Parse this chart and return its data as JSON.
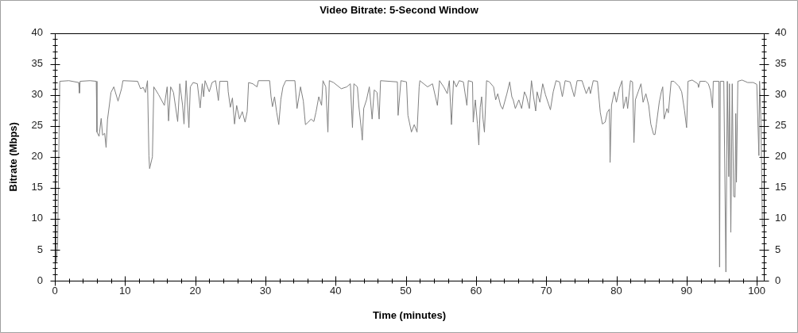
{
  "chart_data": {
    "type": "line",
    "title": "Video Bitrate: 5-Second Window",
    "xlabel": "Time (minutes)",
    "ylabel": "Bitrate (Mbps)",
    "color": "#808080",
    "marker": "none",
    "x": [
      0,
      0.1,
      0.2,
      0.4,
      0.5,
      0.7,
      2.0,
      3.4,
      3.5,
      3.6,
      5.0,
      5.9,
      6.0,
      6.3,
      6.6,
      6.8,
      7.1,
      7.3,
      7.5,
      8.0,
      8.4,
      9.0,
      9.5,
      9.7,
      11.8,
      12.2,
      12.6,
      12.9,
      13.2,
      13.4,
      13.5,
      13.9,
      14.1,
      14.8,
      15.6,
      16.0,
      16.2,
      16.5,
      16.9,
      17.5,
      17.8,
      18.2,
      18.4,
      18.7,
      19.1,
      19.3,
      19.7,
      20.3,
      20.7,
      21.0,
      21.2,
      21.4,
      22.0,
      22.4,
      22.9,
      23.3,
      23.5,
      24.6,
      24.7,
      25.0,
      25.3,
      25.6,
      25.9,
      26.3,
      26.7,
      27.1,
      27.4,
      27.6,
      28.2,
      28.8,
      29.0,
      30.6,
      30.8,
      31.0,
      31.3,
      31.6,
      31.9,
      32.2,
      32.5,
      32.9,
      34.2,
      34.5,
      35.0,
      35.4,
      35.7,
      36.1,
      36.5,
      36.9,
      37.2,
      37.6,
      38.0,
      38.2,
      38.6,
      38.9,
      39.1,
      39.7,
      40.8,
      41.6,
      42.1,
      42.4,
      42.6,
      43.1,
      43.3,
      43.7,
      43.8,
      44.0,
      44.4,
      44.8,
      45.2,
      45.5,
      45.9,
      46.2,
      46.4,
      48.8,
      48.9,
      49.3,
      50.1,
      50.3,
      50.8,
      51.2,
      51.6,
      51.9,
      52.0,
      53.1,
      53.8,
      54.5,
      54.8,
      55.4,
      55.9,
      56.2,
      56.5,
      56.8,
      57.2,
      57.6,
      58.2,
      58.7,
      58.9,
      59.5,
      59.6,
      59.9,
      60.2,
      60.4,
      60.6,
      60.8,
      61.0,
      61.2,
      61.5,
      61.9,
      62.5,
      62.8,
      63.1,
      63.5,
      63.8,
      64.4,
      64.8,
      65.1,
      65.3,
      65.6,
      66.1,
      66.5,
      66.9,
      67.2,
      67.6,
      67.9,
      68.2,
      68.5,
      68.7,
      69.1,
      69.5,
      69.9,
      70.6,
      71.0,
      71.4,
      71.9,
      72.3,
      72.7,
      73.4,
      74.0,
      74.4,
      75.1,
      75.7,
      76.1,
      76.3,
      76.7,
      77.3,
      77.7,
      78.0,
      78.4,
      78.7,
      79.0,
      79.1,
      79.3,
      79.7,
      80.0,
      80.4,
      80.8,
      81.0,
      81.4,
      81.6,
      82.0,
      82.3,
      82.5,
      82.7,
      83.1,
      83.5,
      83.8,
      84.2,
      84.6,
      84.9,
      85.3,
      85.5,
      85.7,
      86.1,
      86.4,
      86.6,
      86.8,
      87.2,
      87.4,
      87.8,
      88.2,
      88.9,
      89.3,
      89.7,
      90.0,
      90.2,
      90.8,
      91.6,
      91.7,
      91.9,
      92.7,
      93.1,
      93.4,
      93.7,
      93.8,
      94.6,
      94.7,
      94.8,
      95.3,
      95.6,
      95.8,
      96.0,
      96.1,
      96.3,
      96.5,
      96.7,
      96.9,
      97.0,
      97.1,
      97.3,
      97.9,
      98.7,
      99.5,
      100.0,
      100.3,
      100.4,
      100.6,
      100.8
    ],
    "values": [
      20,
      14,
      3,
      6,
      15,
      32.2,
      32.3,
      32.0,
      30.3,
      32.2,
      32.3,
      32.2,
      24,
      23.3,
      26.2,
      23.5,
      23.8,
      21.5,
      26,
      30.4,
      31.3,
      29,
      31,
      32.3,
      32.2,
      31,
      31.2,
      30.4,
      32.3,
      20.2,
      18.1,
      20,
      31.3,
      30,
      28.3,
      31.3,
      25.8,
      31.3,
      30.4,
      25.7,
      31.8,
      28.3,
      25.3,
      32.3,
      24.7,
      31.3,
      32,
      31.8,
      27.9,
      31.8,
      29.7,
      32.3,
      30.5,
      32,
      32.3,
      29.1,
      32.2,
      32.2,
      30.5,
      28,
      29.5,
      25.3,
      28.3,
      26.1,
      27.3,
      25.6,
      27.3,
      32,
      31.8,
      31.3,
      32.3,
      32.3,
      29.7,
      28.1,
      29.7,
      27.2,
      25.2,
      29.3,
      31.3,
      32.3,
      32.3,
      27.8,
      31.3,
      29.0,
      25.2,
      25.6,
      26.1,
      25.7,
      27.2,
      29.7,
      28.3,
      32.3,
      31.3,
      24.0,
      32.3,
      32.0,
      31.0,
      31.3,
      31.8,
      24.7,
      31.8,
      31.3,
      28.3,
      24.0,
      22.7,
      27.8,
      29.2,
      31.3,
      26.1,
      30.8,
      30.4,
      26.1,
      32.3,
      32.1,
      26.7,
      32.3,
      32.1,
      26.7,
      24.0,
      25.2,
      24.0,
      31.3,
      32.3,
      31.3,
      31.8,
      28.3,
      32.3,
      31.3,
      30.2,
      32.3,
      25.2,
      32.3,
      31.3,
      32.3,
      32.1,
      28.3,
      32.3,
      32.1,
      25.6,
      29.2,
      25.3,
      21.9,
      28,
      29.7,
      26.1,
      24.0,
      32.3,
      32.1,
      31.3,
      29.2,
      30.2,
      28.3,
      27.7,
      30.2,
      32.1,
      29.7,
      29.2,
      27.8,
      29.2,
      27.8,
      30.5,
      29.7,
      27.8,
      32.3,
      29.7,
      27.4,
      30.5,
      28.8,
      31.8,
      30,
      27.6,
      30.5,
      32.3,
      32.1,
      29.7,
      32.3,
      32.1,
      29.7,
      32.3,
      32.3,
      30.2,
      31.3,
      30.2,
      32.3,
      32.2,
      27.2,
      25.3,
      25.6,
      27.2,
      27.7,
      19.1,
      28.3,
      30.5,
      28.8,
      31.0,
      32.3,
      27.8,
      29.7,
      27.8,
      32.3,
      32.1,
      22.3,
      29.2,
      30.5,
      31.8,
      28.8,
      30.2,
      28.3,
      25.3,
      23.6,
      23.6,
      25.3,
      28.8,
      30.5,
      31.3,
      26.1,
      27.8,
      27.1,
      32.2,
      32.2,
      31.4,
      30.5,
      27.5,
      24.7,
      32.2,
      32.4,
      31.8,
      31.2,
      32.2,
      32.2,
      31.8,
      30.7,
      27.9,
      32.2,
      32.2,
      2.2,
      32.2,
      32.2,
      1.4,
      32.2,
      16.8,
      31.8,
      7.8,
      31.8,
      13.6,
      13.5,
      27,
      15.9,
      32.2,
      32.4,
      32.0,
      32.0,
      31.7,
      20.2,
      32.2,
      25.4,
      8.6
    ],
    "xlim": [
      0,
      101
    ],
    "xticks": [
      0,
      {
        "value": 2,
        "label": null
      },
      {
        "value": 4,
        "label": null
      },
      {
        "value": 6,
        "label": null
      },
      {
        "value": 8,
        "label": null
      },
      10,
      {
        "value": 12,
        "label": null
      },
      {
        "value": 14,
        "label": null
      },
      {
        "value": 16,
        "label": null
      },
      {
        "value": 18,
        "label": null
      },
      20,
      {
        "value": 22,
        "label": null
      },
      {
        "value": 24,
        "label": null
      },
      {
        "value": 26,
        "label": null
      },
      {
        "value": 28,
        "label": null
      },
      30,
      {
        "value": 32,
        "label": null
      },
      {
        "value": 34,
        "label": null
      },
      {
        "value": 36,
        "label": null
      },
      {
        "value": 38,
        "label": null
      },
      40,
      {
        "value": 42,
        "label": null
      },
      {
        "value": 44,
        "label": null
      },
      {
        "value": 46,
        "label": null
      },
      {
        "value": 48,
        "label": null
      },
      50,
      {
        "value": 52,
        "label": null
      },
      {
        "value": 54,
        "label": null
      },
      {
        "value": 56,
        "label": null
      },
      {
        "value": 58,
        "label": null
      },
      60,
      {
        "value": 62,
        "label": null
      },
      {
        "value": 64,
        "label": null
      },
      {
        "value": 66,
        "label": null
      },
      {
        "value": 68,
        "label": null
      },
      70,
      {
        "value": 72,
        "label": null
      },
      {
        "value": 74,
        "label": null
      },
      {
        "value": 76,
        "label": null
      },
      {
        "value": 78,
        "label": null
      },
      80,
      {
        "value": 82,
        "label": null
      },
      {
        "value": 84,
        "label": null
      },
      {
        "value": 86,
        "label": null
      },
      {
        "value": 88,
        "label": null
      },
      90,
      {
        "value": 92,
        "label": null
      },
      {
        "value": 94,
        "label": null
      },
      {
        "value": 96,
        "label": null
      },
      {
        "value": 98,
        "label": null
      },
      100
    ],
    "ylim": [
      0,
      40
    ],
    "yticks": [
      0,
      {
        "value": 1,
        "label": null
      },
      {
        "value": 2,
        "label": null
      },
      {
        "value": 3,
        "label": null
      },
      {
        "value": 4,
        "label": null
      },
      5,
      {
        "value": 6,
        "label": null
      },
      {
        "value": 7,
        "label": null
      },
      {
        "value": 8,
        "label": null
      },
      {
        "value": 9,
        "label": null
      },
      10,
      {
        "value": 11,
        "label": null
      },
      {
        "value": 12,
        "label": null
      },
      {
        "value": 13,
        "label": null
      },
      {
        "value": 14,
        "label": null
      },
      15,
      {
        "value": 16,
        "label": null
      },
      {
        "value": 17,
        "label": null
      },
      {
        "value": 18,
        "label": null
      },
      {
        "value": 19,
        "label": null
      },
      20,
      {
        "value": 21,
        "label": null
      },
      {
        "value": 22,
        "label": null
      },
      {
        "value": 23,
        "label": null
      },
      {
        "value": 24,
        "label": null
      },
      25,
      {
        "value": 26,
        "label": null
      },
      {
        "value": 27,
        "label": null
      },
      {
        "value": 28,
        "label": null
      },
      {
        "value": 29,
        "label": null
      },
      30,
      {
        "value": 31,
        "label": null
      },
      {
        "value": 32,
        "label": null
      },
      {
        "value": 33,
        "label": null
      },
      {
        "value": 34,
        "label": null
      },
      35,
      {
        "value": 36,
        "label": null
      },
      {
        "value": 37,
        "label": null
      },
      {
        "value": 38,
        "label": null
      },
      {
        "value": 39,
        "label": null
      },
      40
    ],
    "y2lim": [
      0,
      40
    ],
    "y2ticks": [
      0,
      {
        "value": 1,
        "label": null
      },
      {
        "value": 2,
        "label": null
      },
      {
        "value": 3,
        "label": null
      },
      {
        "value": 4,
        "label": null
      },
      5,
      {
        "value": 6,
        "label": null
      },
      {
        "value": 7,
        "label": null
      },
      {
        "value": 8,
        "label": null
      },
      {
        "value": 9,
        "label": null
      },
      10,
      {
        "value": 11,
        "label": null
      },
      {
        "value": 12,
        "label": null
      },
      {
        "value": 13,
        "label": null
      },
      {
        "value": 14,
        "label": null
      },
      15,
      {
        "value": 16,
        "label": null
      },
      {
        "value": 17,
        "label": null
      },
      {
        "value": 18,
        "label": null
      },
      {
        "value": 19,
        "label": null
      },
      20,
      {
        "value": 21,
        "label": null
      },
      {
        "value": 22,
        "label": null
      },
      {
        "value": 23,
        "label": null
      },
      {
        "value": 24,
        "label": null
      },
      25,
      {
        "value": 26,
        "label": null
      },
      {
        "value": 27,
        "label": null
      },
      {
        "value": 28,
        "label": null
      },
      {
        "value": 29,
        "label": null
      },
      30,
      {
        "value": 31,
        "label": null
      },
      {
        "value": 32,
        "label": null
      },
      {
        "value": 33,
        "label": null
      },
      {
        "value": 34,
        "label": null
      },
      35,
      {
        "value": 36,
        "label": null
      },
      {
        "value": 37,
        "label": null
      },
      {
        "value": 38,
        "label": null
      },
      {
        "value": 39,
        "label": null
      },
      40
    ]
  }
}
